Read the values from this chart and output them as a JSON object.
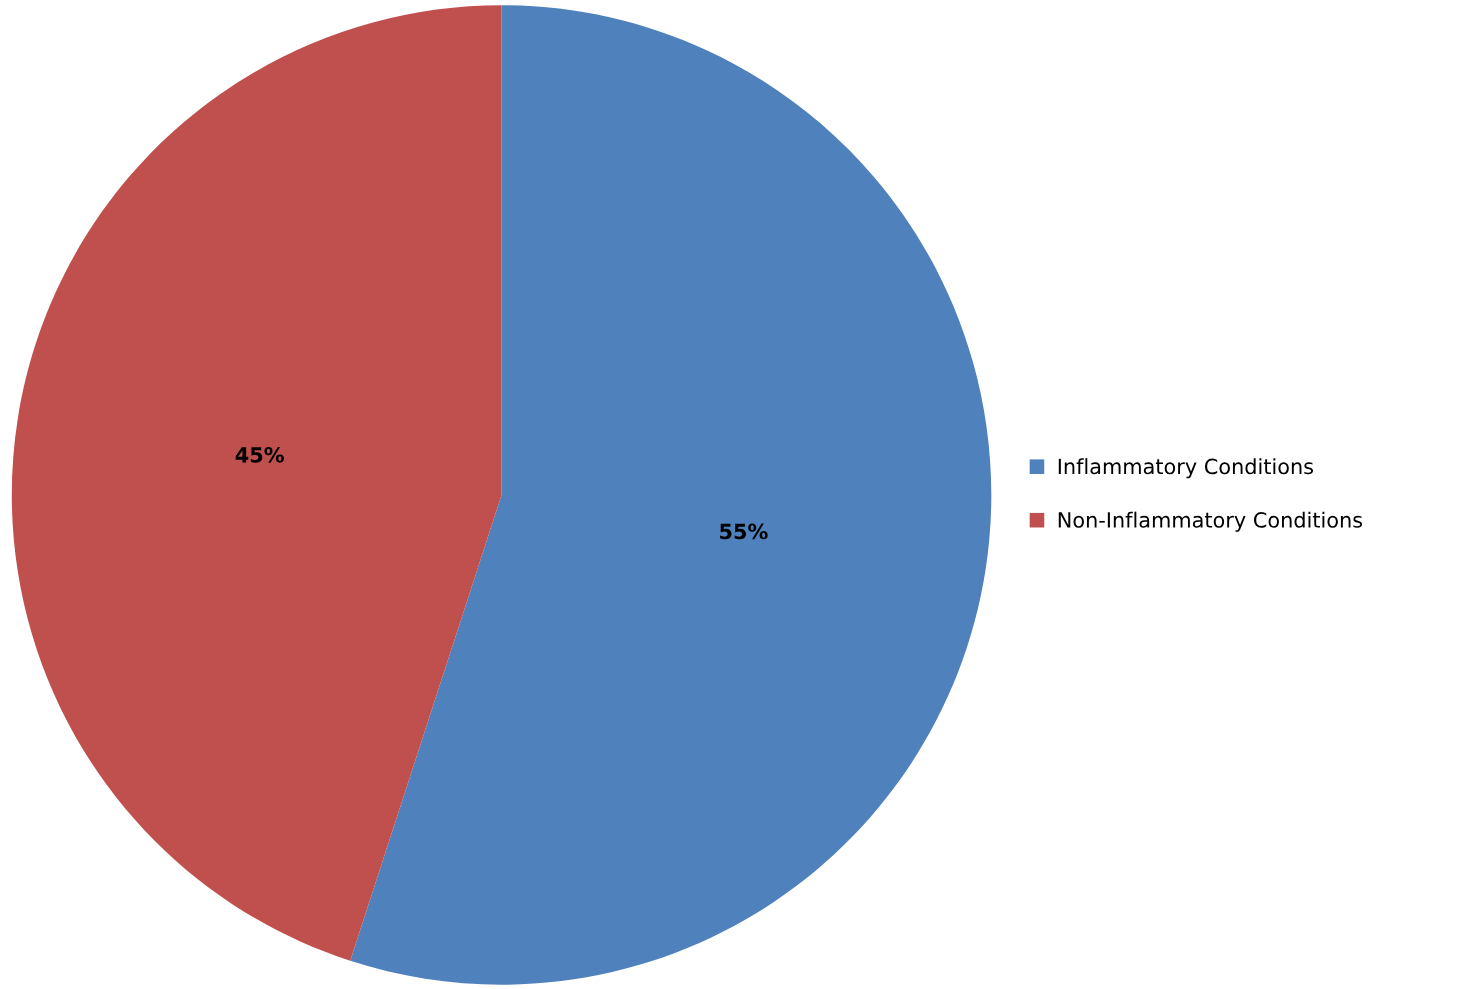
{
  "chart_data": {
    "type": "pie",
    "categories": [
      "Inflammatory Conditions",
      "Non-Inflammatory Conditions"
    ],
    "values": [
      55,
      45
    ],
    "colors": [
      "#4f81bd",
      "#c0504d"
    ],
    "value_labels": [
      "55%",
      "45%"
    ],
    "legend": "right"
  }
}
